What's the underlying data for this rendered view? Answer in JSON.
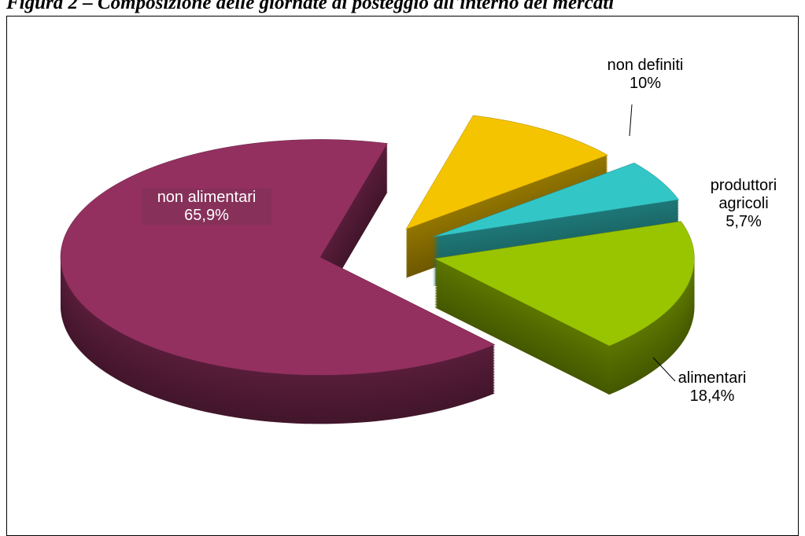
{
  "chart_data": {
    "type": "pie3d",
    "title": "Figura 2 – Composizione delle giornate di posteggio all'interno dei mercati",
    "categories": [
      "non definiti",
      "produttori agricoli",
      "alimentari",
      "non alimentari"
    ],
    "values": [
      10,
      5.7,
      18.4,
      65.9
    ],
    "value_labels": [
      "10%",
      "5,7%",
      "18,4%",
      "65,9%"
    ],
    "colors": [
      "#f5c400",
      "#33c6c6",
      "#99c400",
      "#933060"
    ]
  }
}
